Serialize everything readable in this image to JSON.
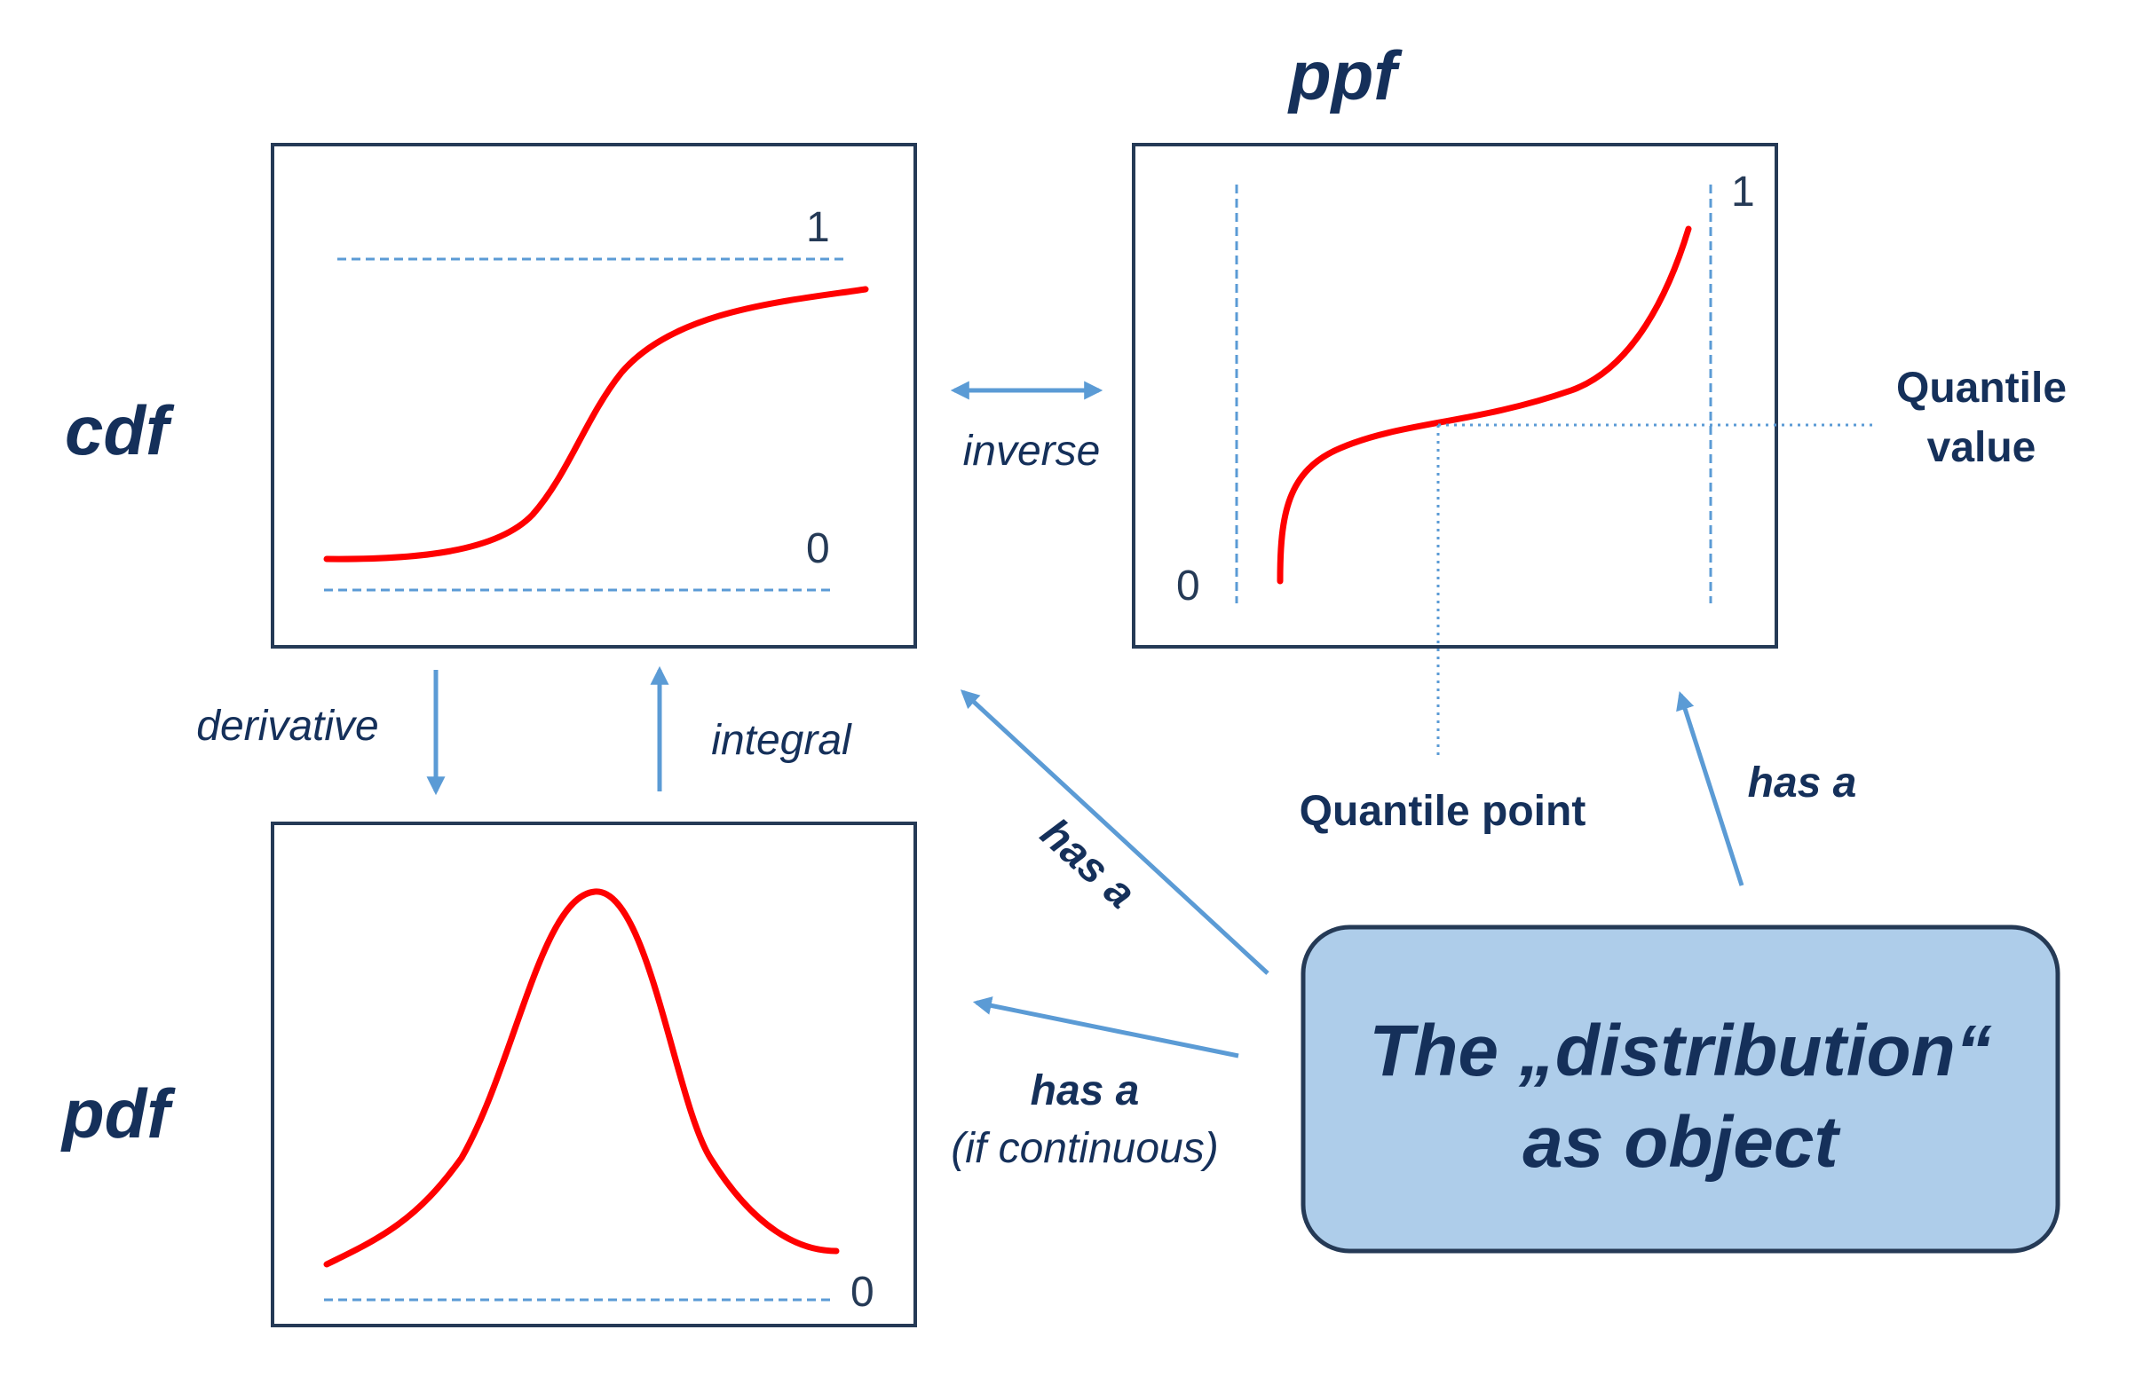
{
  "cdf": {
    "title": "cdf",
    "upper_label": "1",
    "lower_label": "0"
  },
  "ppf": {
    "title": "ppf",
    "upper_label": "1",
    "lower_label": "0",
    "quantile_value_line1": "Quantile",
    "quantile_value_line2": "value",
    "quantile_point": "Quantile point"
  },
  "pdf": {
    "title": "pdf",
    "baseline_label": "0"
  },
  "relations": {
    "inverse": "inverse",
    "derivative": "derivative",
    "integral": "integral",
    "has_a_cdf": "has a",
    "has_a_ppf": "has a",
    "has_a_pdf": "has a",
    "if_continuous": "(if continuous)"
  },
  "distribution": {
    "line1": "The „distribution“",
    "line2": "as object"
  },
  "colors": {
    "curve": "#ff0000",
    "arrow": "#5b9bd5",
    "text": "#15305a",
    "frame": "#253a56",
    "box_fill": "#aecdea"
  }
}
